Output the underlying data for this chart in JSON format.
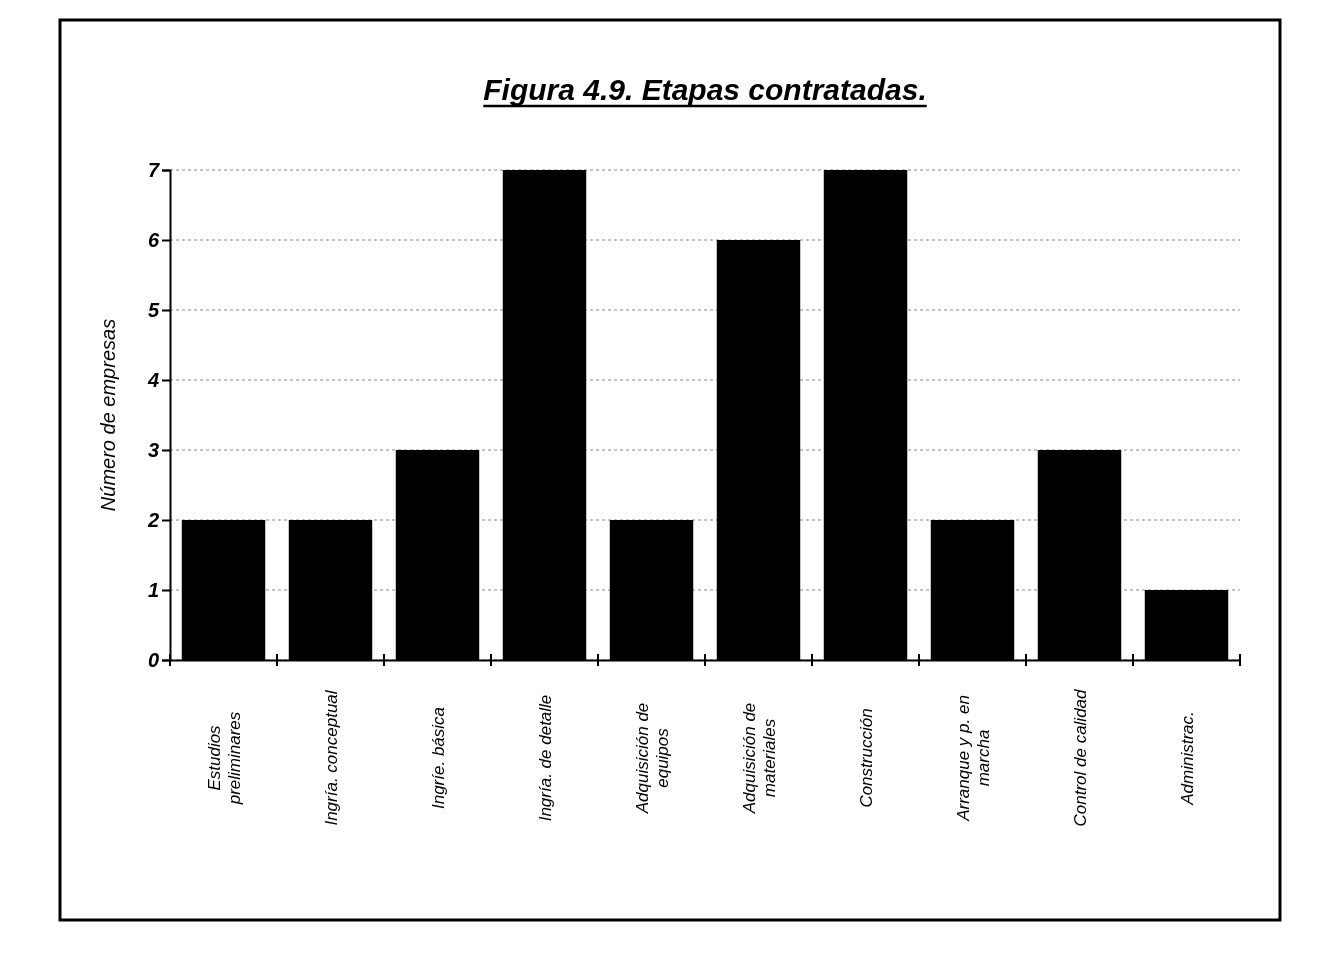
{
  "chart_data": {
    "type": "bar",
    "title": "Figura 4.9. Etapas contratadas.",
    "ylabel": "Número de empresas",
    "categories": [
      "Estudios preliminares",
      "Ingría. conceptual",
      "Ingríe. básica",
      "Ingría. de detalle",
      "Adquisición de equipos",
      "Adquisición de materiales",
      "Construcción",
      "Arranque y p. en marcha",
      "Control de calidad",
      "Administrac."
    ],
    "values": [
      2,
      2,
      3,
      7,
      2,
      6,
      7,
      2,
      3,
      1
    ],
    "color": "#000000",
    "ylim": [
      0,
      7
    ],
    "yticks": [
      0,
      1,
      2,
      3,
      4,
      5,
      6,
      7
    ],
    "grid": "y"
  }
}
